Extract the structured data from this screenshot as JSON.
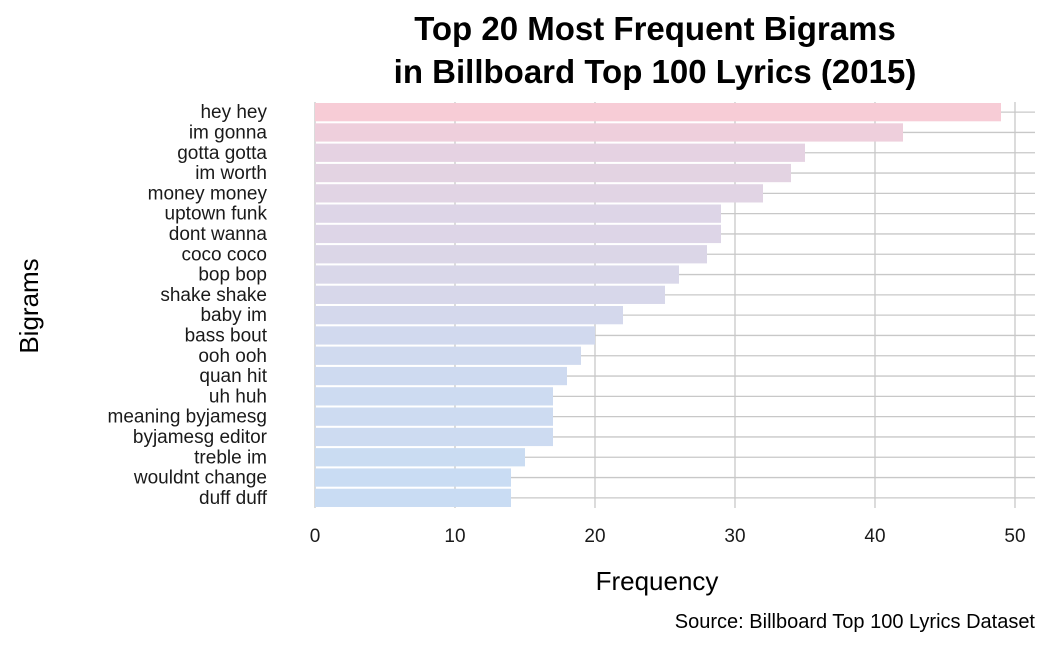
{
  "chart_data": {
    "type": "bar",
    "orientation": "horizontal",
    "title": [
      "Top 20 Most Frequent Bigrams",
      "in Billboard Top 100 Lyrics (2015)"
    ],
    "xlabel": "Frequency",
    "ylabel": "Bigrams",
    "caption": "Source: Billboard Top 100 Lyrics Dataset",
    "categories": [
      "hey hey",
      "im gonna",
      "gotta gotta",
      "im worth",
      "money money",
      "uptown funk",
      "dont wanna",
      "coco coco",
      "bop bop",
      "shake shake",
      "baby im",
      "bass bout",
      "ooh ooh",
      "quan hit",
      "uh huh",
      "meaning byjamesg",
      "byjamesg editor",
      "treble im",
      "wouldnt change",
      "duff duff"
    ],
    "values": [
      49,
      42,
      35,
      34,
      32,
      29,
      29,
      28,
      26,
      25,
      22,
      20,
      19,
      18,
      17,
      17,
      17,
      15,
      14,
      14
    ],
    "xlim": [
      0,
      50
    ],
    "xticks": [
      0,
      10,
      20,
      30,
      40,
      50
    ],
    "grid": true,
    "bar_color_low": "#c9dcf3",
    "bar_color_high": "#f7ccd6",
    "grid_color": "#c8c8c8"
  }
}
